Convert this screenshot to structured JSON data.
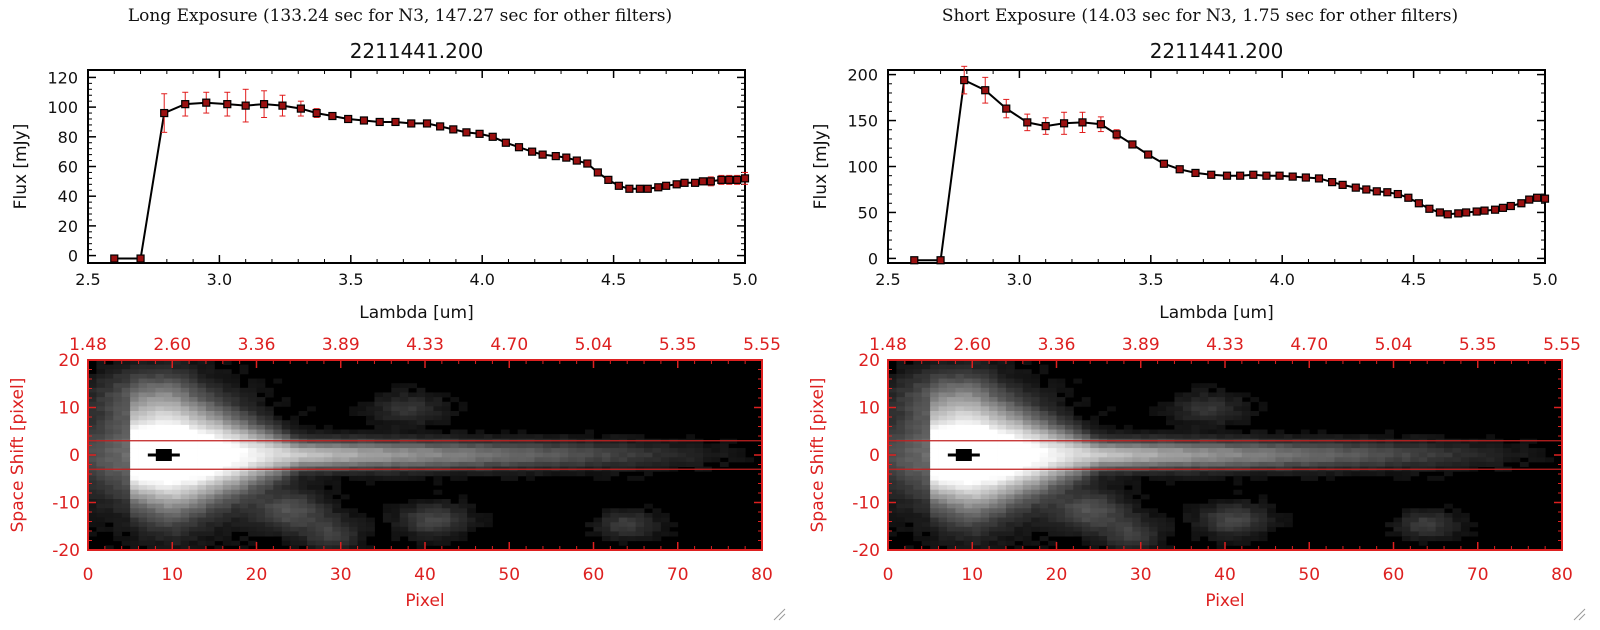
{
  "colors": {
    "spectrum_line": "#000000",
    "marker_fill": "#9a1010",
    "error_bar": "#e11d1d",
    "image_axis": "#dd2020",
    "aperture_line": "#c02020",
    "background": "#ffffff"
  },
  "panels": [
    {
      "title": "Long Exposure (133.24 sec for N3, 147.27 sec for other filters)",
      "spectrum": {
        "title": "2211441.200",
        "xlabel": "Lambda [um]",
        "ylabel": "Flux [mJy]"
      },
      "image": {
        "xlabel": "Pixel",
        "ylabel": "Space Shift [pixel]"
      }
    },
    {
      "title": "Short Exposure (14.03 sec for N3, 1.75 sec for other filters)",
      "spectrum": {
        "title": "2211441.200",
        "xlabel": "Lambda [um]",
        "ylabel": "Flux [mJy]"
      },
      "image": {
        "xlabel": "Pixel",
        "ylabel": "Space Shift [pixel]"
      }
    }
  ],
  "chart_data": [
    {
      "type": "line",
      "title": "2211441.200",
      "xlabel": "Lambda [um]",
      "ylabel": "Flux [mJy]",
      "xlim": [
        2.5,
        5.0
      ],
      "ylim": [
        -5,
        125
      ],
      "xticks": [
        "2.5",
        "3.0",
        "3.5",
        "4.0",
        "4.5",
        "5.0"
      ],
      "yticks": [
        "0",
        "20",
        "40",
        "60",
        "80",
        "100",
        "120"
      ],
      "grid": false,
      "x": [
        2.6,
        2.7,
        2.79,
        2.87,
        2.95,
        3.03,
        3.1,
        3.17,
        3.24,
        3.31,
        3.37,
        3.43,
        3.49,
        3.55,
        3.61,
        3.67,
        3.73,
        3.79,
        3.84,
        3.89,
        3.94,
        3.99,
        4.04,
        4.09,
        4.14,
        4.19,
        4.23,
        4.28,
        4.32,
        4.36,
        4.4,
        4.44,
        4.48,
        4.52,
        4.56,
        4.6,
        4.63,
        4.67,
        4.7,
        4.74,
        4.77,
        4.81,
        4.84,
        4.87,
        4.91,
        4.94,
        4.97,
        5.0
      ],
      "y": [
        -2,
        -2,
        96,
        102,
        103,
        102,
        101,
        102,
        101,
        99,
        96,
        94,
        92,
        91,
        90,
        90,
        89,
        89,
        87,
        85,
        83,
        82,
        80,
        76,
        73,
        70,
        68,
        67,
        66,
        64,
        62,
        56,
        51,
        47,
        45,
        45,
        45,
        46,
        47,
        48,
        49,
        49,
        50,
        50,
        51,
        51,
        51,
        52
      ],
      "yerr": [
        0,
        0,
        13,
        8,
        7,
        8,
        11,
        9,
        7,
        5,
        3,
        2,
        1,
        1,
        1,
        1,
        1,
        1,
        1,
        1,
        1,
        1,
        1,
        1,
        1,
        1,
        1,
        1,
        1,
        1,
        1,
        1,
        1,
        1,
        1,
        1,
        1,
        1,
        1,
        1,
        1,
        2,
        2,
        3,
        3,
        3,
        3,
        4
      ]
    },
    {
      "type": "heatmap",
      "xlabel": "Pixel",
      "ylabel": "Space Shift [pixel]",
      "xlim": [
        0,
        80
      ],
      "ylim": [
        -20,
        20
      ],
      "xticks": [
        "0",
        "10",
        "20",
        "30",
        "40",
        "50",
        "60",
        "70",
        "80"
      ],
      "yticks": [
        "-20",
        "-10",
        "0",
        "10",
        "20"
      ],
      "top_ticks": [
        "1.48",
        "2.60",
        "3.36",
        "3.89",
        "4.33",
        "4.70",
        "5.04",
        "5.35",
        "5.55"
      ],
      "aperture": [
        -3,
        3
      ],
      "source_marker": {
        "x": 9,
        "y": 0
      }
    },
    {
      "type": "line",
      "title": "2211441.200",
      "xlabel": "Lambda [um]",
      "ylabel": "Flux [mJy]",
      "xlim": [
        2.5,
        5.0
      ],
      "ylim": [
        -5,
        205
      ],
      "xticks": [
        "2.5",
        "3.0",
        "3.5",
        "4.0",
        "4.5",
        "5.0"
      ],
      "yticks": [
        "0",
        "50",
        "100",
        "150",
        "200"
      ],
      "grid": false,
      "x": [
        2.6,
        2.7,
        2.79,
        2.87,
        2.95,
        3.03,
        3.1,
        3.17,
        3.24,
        3.31,
        3.37,
        3.43,
        3.49,
        3.55,
        3.61,
        3.67,
        3.73,
        3.79,
        3.84,
        3.89,
        3.94,
        3.99,
        4.04,
        4.09,
        4.14,
        4.19,
        4.23,
        4.28,
        4.32,
        4.36,
        4.4,
        4.44,
        4.48,
        4.52,
        4.56,
        4.6,
        4.63,
        4.67,
        4.7,
        4.74,
        4.77,
        4.81,
        4.84,
        4.87,
        4.91,
        4.94,
        4.97,
        5.0
      ],
      "y": [
        -2,
        -2,
        194,
        183,
        163,
        148,
        144,
        147,
        148,
        146,
        135,
        124,
        113,
        103,
        97,
        93,
        91,
        90,
        90,
        91,
        90,
        90,
        89,
        88,
        87,
        83,
        80,
        77,
        75,
        73,
        72,
        70,
        66,
        60,
        54,
        50,
        48,
        49,
        50,
        51,
        52,
        53,
        55,
        57,
        60,
        64,
        66,
        65
      ],
      "yerr": [
        0,
        0,
        15,
        14,
        10,
        9,
        9,
        12,
        11,
        8,
        5,
        3,
        2,
        1,
        1,
        1,
        1,
        1,
        1,
        1,
        1,
        1,
        1,
        1,
        1,
        1,
        1,
        1,
        1,
        1,
        1,
        1,
        1,
        1,
        1,
        1,
        1,
        1,
        1,
        1,
        1,
        1,
        1,
        2,
        2,
        2,
        3,
        3
      ]
    },
    {
      "type": "heatmap",
      "xlabel": "Pixel",
      "ylabel": "Space Shift [pixel]",
      "xlim": [
        0,
        80
      ],
      "ylim": [
        -20,
        20
      ],
      "xticks": [
        "0",
        "10",
        "20",
        "30",
        "40",
        "50",
        "60",
        "70",
        "80"
      ],
      "yticks": [
        "-20",
        "-10",
        "0",
        "10",
        "20"
      ],
      "top_ticks": [
        "1.48",
        "2.60",
        "3.36",
        "3.89",
        "4.33",
        "4.70",
        "5.04",
        "5.35",
        "5.55"
      ],
      "aperture": [
        -3,
        3
      ],
      "source_marker": {
        "x": 9,
        "y": 0
      }
    }
  ]
}
